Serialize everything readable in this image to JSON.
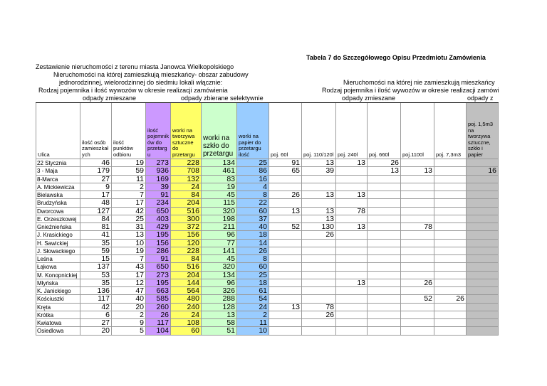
{
  "header": {
    "title": "Tabela  7 do Szczegółowego Opisu Przedmiotu Zamówienia",
    "left_lines": [
      "Zestawienie nieruchomości z terenu  miasta Janowca Wielkopolskiego",
      "Nieruchomości na której zamieszkują mieszkańcy- obszar  zabudowy",
      "jednorodzinnej, wielorodzinnej  do siedmiu lokali włącznie:",
      "Rodzaj pojemnika i ilość wywozów w okresie realizacji zamówienia"
    ],
    "left_mixed": "odpady zmieszane",
    "left_selective": "odpady zbierane selektywnie",
    "right_lines": [
      "Nieruchomości na której nie zamieszkują mieszkańcy",
      "Rodzaj pojemnika i ilość wywozów w okresie realizacji zamówi"
    ],
    "right_mixed": "odpady zmieszane",
    "right_selective": "odpady z"
  },
  "table": {
    "columns": [
      "Ulica",
      "ilość osób zamieszkałych",
      "ilość punktów odbioru",
      "ilość pojemników do przetargu",
      "worki na tworzywa sztuczne do przetargu",
      "worki na szkło do przetargu",
      "worki na papier do przetargu ilość",
      "poj. 60l",
      "poj. 110/120l",
      "poj. 240l",
      "poj. 660l",
      "poj.1100l",
      "poj. 7,3m3",
      "poj. 1,5m3 na tworzywa sztuczne, szkło i papier"
    ],
    "rows": [
      {
        "street": "22 Stycznia",
        "values": [
          46,
          19,
          273,
          228,
          134,
          25,
          91,
          13,
          13,
          26,
          null,
          null,
          null
        ]
      },
      {
        "street": "3 - Maja",
        "values": [
          179,
          59,
          936,
          708,
          461,
          86,
          65,
          39,
          null,
          13,
          13,
          null,
          16
        ]
      },
      {
        "street": "8-Marca",
        "values": [
          27,
          11,
          169,
          132,
          83,
          16,
          null,
          null,
          null,
          null,
          null,
          null,
          null
        ]
      },
      {
        "street": "A. Mickiewicza",
        "values": [
          9,
          2,
          39,
          24,
          19,
          4,
          null,
          null,
          null,
          null,
          null,
          null,
          null
        ]
      },
      {
        "street": "Bielawska",
        "values": [
          17,
          7,
          91,
          84,
          45,
          8,
          26,
          13,
          13,
          null,
          null,
          null,
          null
        ]
      },
      {
        "street": "Brudzyńska",
        "values": [
          48,
          17,
          234,
          204,
          115,
          22,
          null,
          null,
          null,
          null,
          null,
          null,
          null
        ]
      },
      {
        "street": "Dworcowa",
        "values": [
          127,
          42,
          650,
          516,
          320,
          60,
          13,
          13,
          78,
          null,
          null,
          null,
          null
        ]
      },
      {
        "street": "E. Orzeszkowej",
        "values": [
          84,
          25,
          403,
          300,
          198,
          37,
          null,
          13,
          null,
          null,
          null,
          null,
          null
        ]
      },
      {
        "street": "Gnieźnieńska",
        "values": [
          81,
          31,
          429,
          372,
          211,
          40,
          52,
          130,
          13,
          null,
          78,
          null,
          null
        ]
      },
      {
        "street": "J. Krasickiego",
        "values": [
          41,
          13,
          195,
          156,
          96,
          18,
          null,
          26,
          null,
          null,
          null,
          null,
          null
        ]
      },
      {
        "street": "H. Sawickiej",
        "values": [
          35,
          10,
          156,
          120,
          77,
          14,
          null,
          null,
          null,
          null,
          null,
          null,
          null
        ]
      },
      {
        "street": "J. Słowackiego",
        "values": [
          59,
          19,
          286,
          228,
          141,
          26,
          null,
          null,
          null,
          null,
          null,
          null,
          null
        ]
      },
      {
        "street": "Leśna",
        "values": [
          15,
          7,
          91,
          84,
          45,
          8,
          null,
          null,
          null,
          null,
          null,
          null,
          null
        ]
      },
      {
        "street": "Łąkowa",
        "values": [
          137,
          43,
          650,
          516,
          320,
          60,
          null,
          null,
          null,
          null,
          null,
          null,
          null
        ]
      },
      {
        "street": "M. Konopnickiej",
        "values": [
          53,
          17,
          273,
          204,
          134,
          25,
          null,
          null,
          null,
          null,
          null,
          null,
          null
        ]
      },
      {
        "street": "Młyńska",
        "values": [
          35,
          12,
          195,
          144,
          96,
          18,
          null,
          null,
          13,
          null,
          26,
          null,
          null
        ]
      },
      {
        "street": "K. Janickiego",
        "values": [
          136,
          47,
          663,
          564,
          326,
          61,
          null,
          null,
          null,
          null,
          null,
          null,
          null
        ]
      },
      {
        "street": "Kościuszki",
        "values": [
          117,
          40,
          585,
          480,
          288,
          54,
          null,
          null,
          null,
          null,
          52,
          26,
          null
        ]
      },
      {
        "street": "Kręta",
        "values": [
          42,
          20,
          260,
          240,
          128,
          24,
          13,
          78,
          null,
          null,
          null,
          null,
          null
        ]
      },
      {
        "street": "Krótka",
        "values": [
          6,
          2,
          26,
          24,
          13,
          2,
          null,
          26,
          null,
          null,
          null,
          null,
          null
        ]
      },
      {
        "street": "Kwiatowa",
        "values": [
          27,
          9,
          117,
          108,
          58,
          11,
          null,
          null,
          null,
          null,
          null,
          null,
          null
        ]
      },
      {
        "street": "Osiedlowa",
        "values": [
          20,
          5,
          104,
          60,
          51,
          10,
          null,
          null,
          null,
          null,
          null,
          null,
          null
        ]
      }
    ]
  }
}
